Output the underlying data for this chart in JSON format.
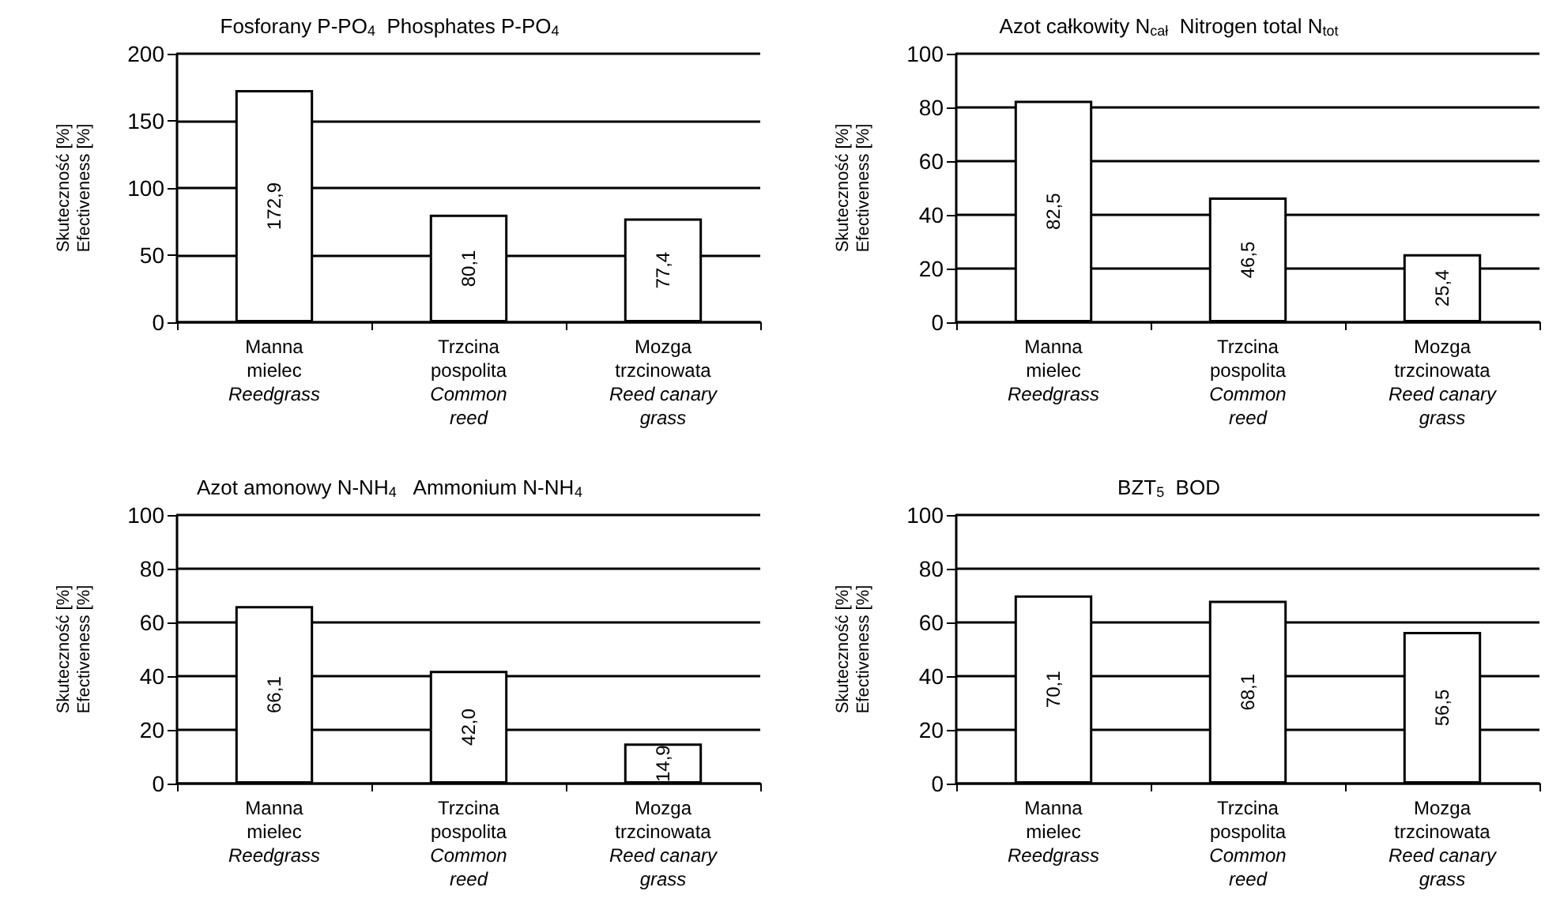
{
  "chart_data": [
    {
      "type": "bar",
      "title": "Fosforany P-PO$_{4}$  Phosphates P-PO$_{4}$",
      "ylabel": "Skuteczność [%]\nEfectiveness [%]",
      "categories": [
        "Manna\nmielec\nReedgrass",
        "Trzcina\npospolita\nCommon\nreed",
        "Mozga\ntrzcinowata\nReed canary\ngrass"
      ],
      "values": [
        172.9,
        80.1,
        77.4
      ],
      "value_labels": [
        "172,9",
        "80,1",
        "77,4"
      ],
      "color": "#ffffff",
      "ylim": [
        0,
        200
      ],
      "yticks": [
        0,
        50,
        100,
        150,
        200
      ],
      "grid": "y"
    },
    {
      "type": "bar",
      "title": "Azot całkowity N$_{cał}$  Nitrogen total N$_{tot}$",
      "ylabel": "Skuteczność [%]\nEfectiveness [%]",
      "categories": [
        "Manna\nmielec\nReedgrass",
        "Trzcina\npospolita\nCommon\nreed",
        "Mozga\ntrzcinowata\nReed canary\ngrass"
      ],
      "values": [
        82.5,
        46.5,
        25.4
      ],
      "value_labels": [
        "82,5",
        "46,5",
        "25,4"
      ],
      "color": "#ffffff",
      "ylim": [
        0,
        100
      ],
      "yticks": [
        0,
        20,
        40,
        60,
        80,
        100
      ],
      "grid": "y"
    },
    {
      "type": "bar",
      "title": "Azot amonowy N-NH$_{4}$   Ammonium N-NH$_{4}$",
      "ylabel": "Skuteczność [%]\nEfectiveness [%]",
      "categories": [
        "Manna\nmielec\nReedgrass",
        "Trzcina\npospolita\nCommon\nreed",
        "Mozga\ntrzcinowata\nReed canary\ngrass"
      ],
      "values": [
        66.1,
        42.0,
        14.9
      ],
      "value_labels": [
        "66,1",
        "42,0",
        "14,9"
      ],
      "color": "#ffffff",
      "ylim": [
        0,
        100
      ],
      "yticks": [
        0,
        20,
        40,
        60,
        80,
        100
      ],
      "grid": "y"
    },
    {
      "type": "bar",
      "title": "BZT$_{5}$  BOD",
      "ylabel": "Skuteczność [%]\nEfectiveness [%]",
      "categories": [
        "Manna\nmielec\nReedgrass",
        "Trzcina\npospolita\nCommon\nreed",
        "Mozga\ntrzcinowata\nReed canary\ngrass"
      ],
      "values": [
        70.1,
        68.1,
        56.5
      ],
      "value_labels": [
        "70,1",
        "68,1",
        "56,5"
      ],
      "color": "#ffffff",
      "ylim": [
        0,
        100
      ],
      "yticks": [
        0,
        20,
        40,
        60,
        80,
        100
      ],
      "grid": "y"
    }
  ]
}
